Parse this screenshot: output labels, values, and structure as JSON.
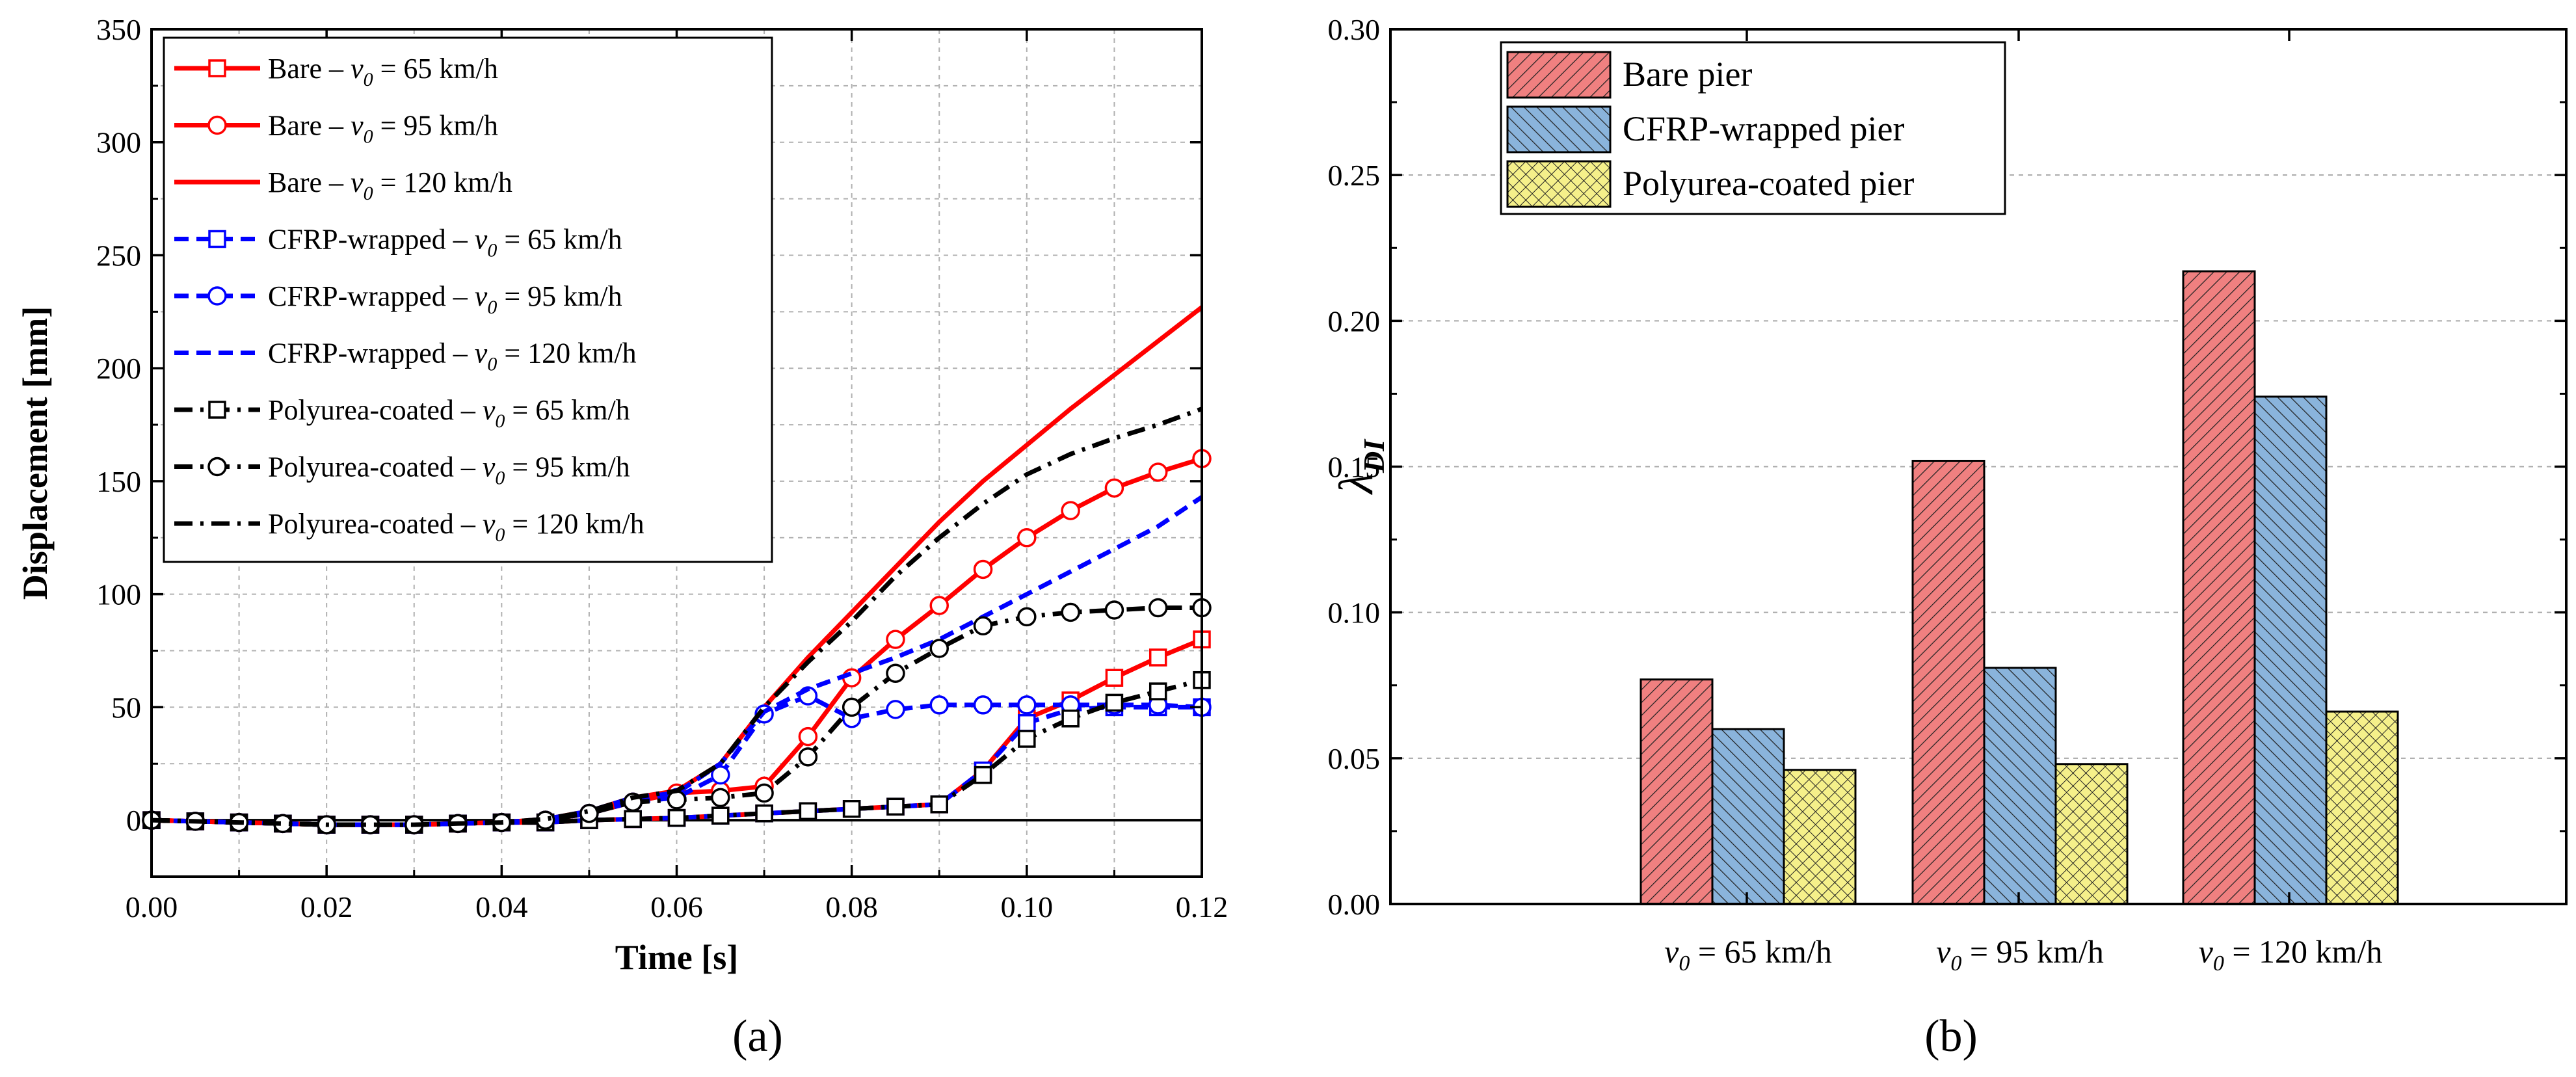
{
  "chart_data": [
    {
      "type": "line",
      "panel_label": "(a)",
      "xlabel": "Time [s]",
      "ylabel": "Displacement [mm]",
      "xlim": [
        0,
        0.12
      ],
      "ylim": [
        -25,
        350
      ],
      "xticks": [
        "0.00",
        "0.02",
        "0.04",
        "0.06",
        "0.08",
        "0.10",
        "0.12"
      ],
      "yticks": [
        "0",
        "50",
        "100",
        "150",
        "200",
        "250",
        "300",
        "350"
      ],
      "grid": true,
      "legend_position": "top-left",
      "x": [
        0,
        0.005,
        0.01,
        0.015,
        0.02,
        0.025,
        0.03,
        0.035,
        0.04,
        0.045,
        0.05,
        0.055,
        0.06,
        0.065,
        0.07,
        0.075,
        0.08,
        0.085,
        0.09,
        0.095,
        0.1,
        0.105,
        0.11,
        0.115,
        0.12
      ],
      "series": [
        {
          "name": "Bare",
          "v0": "65 km/h",
          "color": "#ff0000",
          "dash": "solid",
          "marker": "square",
          "values": [
            0,
            -0.5,
            -1,
            -1.5,
            -2,
            -2,
            -2,
            -1.5,
            -1,
            -1,
            0,
            0.5,
            1,
            2,
            3,
            4,
            5,
            6,
            7,
            22,
            45,
            53,
            63,
            72,
            80
          ]
        },
        {
          "name": "Bare",
          "v0": "95 km/h",
          "color": "#ff0000",
          "dash": "solid",
          "marker": "circle",
          "values": [
            0,
            -0.5,
            -1,
            -1.5,
            -2,
            -2,
            -2,
            -1.5,
            -1,
            0,
            3,
            8,
            12,
            13,
            15,
            37,
            63,
            80,
            95,
            111,
            125,
            137,
            147,
            154,
            160
          ]
        },
        {
          "name": "Bare",
          "v0": "120 km/h",
          "color": "#ff0000",
          "dash": "solid",
          "marker": "none",
          "values": [
            0,
            -0.5,
            -1,
            -1.5,
            -2,
            -2,
            -2,
            -1.5,
            -1,
            0.5,
            4,
            10,
            13,
            25,
            50,
            72,
            92,
            112,
            132,
            150,
            166,
            182,
            197,
            212,
            227
          ]
        },
        {
          "name": "CFRP-wrapped",
          "v0": "65 km/h",
          "color": "#0000ff",
          "dash": "dash",
          "marker": "square",
          "values": [
            0,
            -0.5,
            -1,
            -1.5,
            -2,
            -2,
            -2,
            -1.5,
            -1,
            -1,
            0,
            0.5,
            1,
            2,
            3,
            4,
            5,
            6,
            7,
            22,
            43,
            49,
            50,
            50,
            50
          ]
        },
        {
          "name": "CFRP-wrapped",
          "v0": "95 km/h",
          "color": "#0000ff",
          "dash": "dash",
          "marker": "circle",
          "values": [
            0,
            -0.5,
            -1,
            -1.5,
            -2,
            -2,
            -2,
            -1.5,
            -1,
            0,
            3,
            8,
            10,
            20,
            47,
            55,
            45,
            49,
            51,
            51,
            51,
            51,
            51,
            51,
            50
          ]
        },
        {
          "name": "CFRP-wrapped",
          "v0": "120 km/h",
          "color": "#0000ff",
          "dash": "dash",
          "marker": "none",
          "values": [
            0,
            -0.5,
            -1,
            -1.5,
            -2,
            -2,
            -2,
            -1.5,
            -1,
            0.5,
            4,
            10,
            12,
            25,
            48,
            58,
            65,
            72,
            80,
            90,
            100,
            110,
            120,
            130,
            143
          ]
        },
        {
          "name": "Polyurea-coated",
          "v0": "65 km/h",
          "color": "#000000",
          "dash": "dashdot",
          "marker": "square",
          "values": [
            0,
            -0.5,
            -1,
            -1.5,
            -2,
            -2,
            -2,
            -1.5,
            -1,
            -1,
            0,
            0.5,
            1,
            2,
            3,
            4,
            5,
            6,
            7,
            20,
            36,
            45,
            52,
            57,
            62
          ]
        },
        {
          "name": "Polyurea-coated",
          "v0": "95 km/h",
          "color": "#000000",
          "dash": "dashdot",
          "marker": "circle",
          "values": [
            0,
            -0.5,
            -1,
            -1.5,
            -2,
            -2,
            -2,
            -1.5,
            -1,
            0,
            3,
            8,
            9,
            10,
            12,
            28,
            50,
            65,
            76,
            86,
            90,
            92,
            93,
            94,
            94
          ]
        },
        {
          "name": "Polyurea-coated",
          "v0": "120 km/h",
          "color": "#000000",
          "dash": "dashdot",
          "marker": "none",
          "values": [
            0,
            -0.5,
            -1,
            -1.5,
            -2,
            -2,
            -2,
            -1.5,
            -1,
            0.5,
            4,
            10,
            13,
            25,
            50,
            70,
            88,
            108,
            125,
            140,
            153,
            162,
            169,
            175,
            182
          ]
        }
      ]
    },
    {
      "type": "bar",
      "panel_label": "(b)",
      "ylabel": "λ",
      "ylabel_sub": "DI",
      "ylim": [
        0,
        0.3
      ],
      "yticks": [
        "0.00",
        "0.05",
        "0.10",
        "0.15",
        "0.20",
        "0.25",
        "0.30"
      ],
      "grid": true,
      "legend_position": "top-left",
      "categories": [
        "65 km/h",
        "95 km/h",
        "120 km/h"
      ],
      "category_prefix": "v",
      "category_prefix_sub": "0",
      "category_eq": " = ",
      "series": [
        {
          "name": "Bare pier",
          "color": "#f08080",
          "hatch": "forward",
          "values": [
            0.077,
            0.152,
            0.217
          ]
        },
        {
          "name": "CFRP-wrapped pier",
          "color": "#8ab4dc",
          "hatch": "back",
          "values": [
            0.06,
            0.081,
            0.174
          ]
        },
        {
          "name": "Polyurea-coated pier",
          "color": "#f5f08a",
          "hatch": "cross",
          "values": [
            0.046,
            0.048,
            0.066
          ]
        }
      ]
    }
  ]
}
